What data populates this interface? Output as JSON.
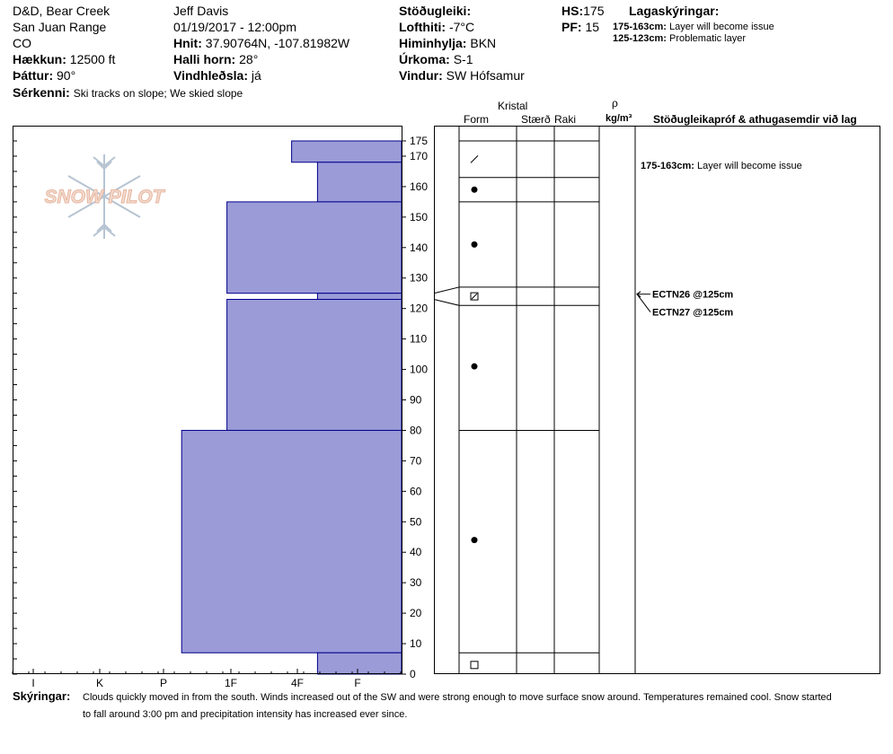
{
  "header": {
    "location_name": "D&D, Bear Creek",
    "range": "San Juan Range",
    "state": "CO",
    "elevation_label": "Hækkun:",
    "elevation_value": "12500 ft",
    "aspect_label": "Þáttur:",
    "aspect_value": "90°",
    "features_label": "Sérkenni:",
    "features_value": "Ski tracks on slope; We skied slope",
    "observer": "Jeff Davis",
    "datetime": "01/19/2017 - 12:00pm",
    "coords_label": "Hnit:",
    "coords_value": "37.90764N, -107.81982W",
    "slope_label": "Halli horn:",
    "slope_value": "28°",
    "wind_loading_label": "Vindhleðsla:",
    "wind_loading_value": "já",
    "stability_label": "Stöðugleiki:",
    "air_temp_label": "Lofthiti:",
    "air_temp_value": "-7°C",
    "sky_label": "Himinhylja:",
    "sky_value": "BKN",
    "precip_label": "Úrkoma:",
    "precip_value": "S-1",
    "wind_label": "Vindur:",
    "wind_value": "SW Hófsamur",
    "hs_label": "HS:",
    "hs_value": "175",
    "pf_label": "PF:",
    "pf_value": "15",
    "layers_title": "Lagaskýringar:",
    "layer_notes": [
      {
        "range": "175-163cm:",
        "text": "Layer will become issue"
      },
      {
        "range": "125-123cm:",
        "text": "Problematic layer"
      }
    ]
  },
  "logo": {
    "text": "SNOW PILOT"
  },
  "columns": {
    "crystal": "Kristal",
    "form": "Form",
    "size": "Stærð",
    "moisture": "Raki",
    "rho": "ρ",
    "density_unit": "kg/m³",
    "stability_tests": "Stöðugleikapróf & athugasemdir við lag"
  },
  "comments": {
    "label": "Skýringar:",
    "line1": "Clouds quickly moved in from the south. Winds increased out of the SW and were strong enough to move surface snow around. Temperatures remained cool. Snow started",
    "line2": "to fall around 3:00 pm and precipitation intensity has increased ever since."
  },
  "chart_data": {
    "type": "bar",
    "title": "",
    "xlabel": "",
    "ylabel": "",
    "hardness_scale": [
      "I",
      "K",
      "P",
      "1F",
      "4F",
      "F"
    ],
    "hardness_scale_index": {
      "F": 0,
      "4F": 1,
      "1F": 2,
      "P": 3,
      "K": 4,
      "I": 5
    },
    "depth_ticks": [
      0,
      10,
      20,
      30,
      40,
      50,
      60,
      70,
      80,
      90,
      100,
      110,
      120,
      130,
      140,
      150,
      160,
      170,
      175
    ],
    "ylim": [
      0,
      175
    ],
    "layers": [
      {
        "top": 175,
        "bottom": 168,
        "hardness": "4F-",
        "hardness_index": 1.7
      },
      {
        "top": 168,
        "bottom": 155,
        "hardness": "4F+",
        "hardness_index": 1.3
      },
      {
        "top": 155,
        "bottom": 125,
        "hardness": "1F+",
        "hardness_index": 2.7
      },
      {
        "top": 125,
        "bottom": 123,
        "hardness": "4F+",
        "hardness_index": 1.3
      },
      {
        "top": 123,
        "bottom": 80,
        "hardness": "1F+",
        "hardness_index": 2.7
      },
      {
        "top": 80,
        "bottom": 7,
        "hardness": "P-",
        "hardness_index": 3.4
      },
      {
        "top": 7,
        "bottom": 0,
        "hardness": "4F+",
        "hardness_index": 1.3
      }
    ],
    "grain_symbols": [
      {
        "depth": 169,
        "form": "decomposing"
      },
      {
        "depth": 159,
        "form": "rounded"
      },
      {
        "depth": 141,
        "form": "rounded"
      },
      {
        "depth": 124,
        "form": "mixed-faceted"
      },
      {
        "depth": 101,
        "form": "rounded"
      },
      {
        "depth": 44,
        "form": "rounded"
      },
      {
        "depth": 3,
        "form": "faceted"
      }
    ],
    "table_boundaries": [
      175,
      163,
      155,
      127,
      121,
      80,
      7,
      0
    ],
    "stability_tests": [
      {
        "label": "ECTN26 @125cm",
        "depth": 125
      },
      {
        "label": "ECTN27 @125cm",
        "depth": 125
      }
    ],
    "layer_comment": {
      "range": "175-163cm:",
      "text": "Layer will become issue"
    }
  }
}
